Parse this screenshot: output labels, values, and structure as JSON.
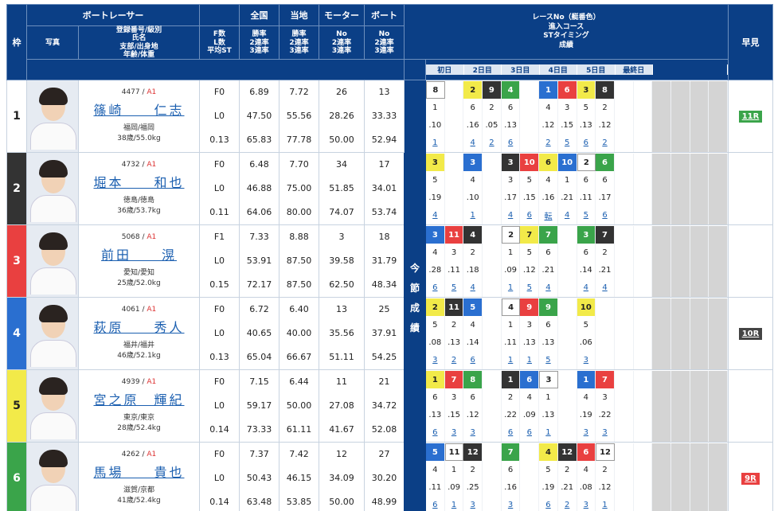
{
  "header": {
    "waku": "枠",
    "photo": "写真",
    "racer": "ボートレーサー",
    "racer_sub": "登録番号/級別\n氏名\n支部/出身地\n年齢/体重",
    "fl": "F数\nL数\n平均ST",
    "zenkoku": "全国",
    "touchi": "当地",
    "motor": "モーター",
    "boat": "ボート",
    "rate3": "勝率\n2連率\n3連率",
    "no3": "No\n2連率\n3連率",
    "race_title": "レースNo（艇番色）\n進入コース\nSTタイミング\n成績",
    "hayami": "早見",
    "side": [
      "今",
      "節",
      "成",
      "績"
    ],
    "days": [
      "初日",
      "2日目",
      "3日目",
      "4日目",
      "5日目",
      "最終日"
    ]
  },
  "racers": [
    {
      "waku": "1",
      "id": "4477",
      "cls": "A1",
      "name": "篠崎　　仁志",
      "branch": "福岡/福岡",
      "age": "38歳/55.0kg",
      "f": "F0",
      "l": "L0",
      "st": "0.13",
      "n": [
        "6.89",
        "47.50",
        "65.83"
      ],
      "t": [
        "7.72",
        "55.56",
        "77.78"
      ],
      "m": [
        "26",
        "28.26",
        "50.00"
      ],
      "b": [
        "13",
        "33.33",
        "52.94"
      ],
      "hayami": "11R",
      "hcolor": "bg-green",
      "r": [
        [
          "8b1",
          "",
          "2b5",
          "9b2",
          "4b6",
          "",
          "1b4",
          "6b3",
          "3b5",
          "8b2",
          "",
          "",
          "",
          "",
          "",
          ""
        ],
        [
          "1",
          "",
          "6",
          "2",
          "6",
          "",
          "4",
          "3",
          "5",
          "2",
          "",
          "",
          "",
          "",
          "",
          ""
        ],
        [
          ".10",
          "",
          ".16",
          ".05",
          ".13",
          "",
          ".12",
          ".15",
          ".13",
          ".12",
          "",
          "",
          "",
          "",
          "",
          ""
        ],
        [
          "1L",
          "",
          "4L",
          "2L",
          "6L",
          "",
          "2L",
          "5L",
          "6L",
          "2L",
          "",
          "",
          "",
          "",
          "",
          ""
        ]
      ]
    },
    {
      "waku": "2",
      "id": "4732",
      "cls": "A1",
      "name": "堀本　　和也",
      "branch": "徳島/徳島",
      "age": "36歳/53.7kg",
      "f": "F0",
      "l": "L0",
      "st": "0.11",
      "n": [
        "6.48",
        "46.88",
        "64.06"
      ],
      "t": [
        "7.70",
        "75.00",
        "80.00"
      ],
      "m": [
        "34",
        "51.85",
        "74.07"
      ],
      "b": [
        "17",
        "34.01",
        "53.74"
      ],
      "hayami": "",
      "hcolor": "",
      "r": [
        [
          "3b5",
          "",
          "3b4",
          "",
          "3b2",
          "10b3",
          "6b5",
          "10b4",
          "2b1",
          "6b6",
          "",
          "",
          "",
          "",
          "",
          ""
        ],
        [
          "5",
          "",
          "4",
          "",
          "3",
          "5",
          "4",
          "1",
          "6",
          "6",
          "",
          "",
          "",
          "",
          "",
          ""
        ],
        [
          ".19",
          "",
          ".10",
          "",
          ".17",
          ".15",
          ".16",
          ".21",
          ".11",
          ".17",
          "",
          "",
          "",
          "",
          "",
          ""
        ],
        [
          "4L",
          "",
          "1L",
          "",
          "4L",
          "6L",
          "転L",
          "4L",
          "5L",
          "6L",
          "",
          "",
          "",
          "",
          "",
          ""
        ]
      ]
    },
    {
      "waku": "3",
      "id": "5068",
      "cls": "A1",
      "name": "前田　　滉",
      "branch": "愛知/愛知",
      "age": "25歳/52.0kg",
      "f": "F1",
      "l": "L0",
      "st": "0.15",
      "n": [
        "7.33",
        "53.91",
        "72.17"
      ],
      "t": [
        "8.88",
        "87.50",
        "87.50"
      ],
      "m": [
        "3",
        "39.58",
        "62.50"
      ],
      "b": [
        "18",
        "31.79",
        "48.34"
      ],
      "hayami": "",
      "hcolor": "",
      "r": [
        [
          "3b4",
          "11b3",
          "4b2",
          "",
          "2b1",
          "7b5",
          "7b6",
          "",
          "3b6",
          "7b2",
          "",
          "",
          "",
          "",
          "",
          ""
        ],
        [
          "4",
          "3",
          "2",
          "",
          "1",
          "5",
          "6",
          "",
          "6",
          "2",
          "",
          "",
          "",
          "",
          "",
          ""
        ],
        [
          ".28",
          ".11",
          ".18",
          "",
          ".09",
          ".12",
          ".21",
          "",
          ".14",
          ".21",
          "",
          "",
          "",
          "",
          "",
          ""
        ],
        [
          "6L",
          "5L",
          "4L",
          "",
          "1L",
          "5L",
          "4L",
          "",
          "4L",
          "4L",
          "",
          "",
          "",
          "",
          "",
          ""
        ]
      ]
    },
    {
      "waku": "4",
      "id": "4061",
      "cls": "A1",
      "name": "萩原　　秀人",
      "branch": "福井/福井",
      "age": "46歳/52.1kg",
      "f": "F0",
      "l": "L0",
      "st": "0.13",
      "n": [
        "6.72",
        "40.65",
        "65.04"
      ],
      "t": [
        "6.40",
        "40.00",
        "66.67"
      ],
      "m": [
        "13",
        "35.56",
        "51.11"
      ],
      "b": [
        "25",
        "37.91",
        "54.25"
      ],
      "hayami": "10R",
      "hcolor": "bg-dark",
      "r": [
        [
          "2b5",
          "11b2",
          "5b4",
          "",
          "4b1",
          "9b3",
          "9b6",
          "",
          "10b5",
          "",
          "",
          "",
          "",
          "",
          "",
          ""
        ],
        [
          "5",
          "2",
          "4",
          "",
          "1",
          "3",
          "6",
          "",
          "5",
          "",
          "",
          "",
          "",
          "",
          "",
          ""
        ],
        [
          ".08",
          ".13",
          ".14",
          "",
          ".11",
          ".13",
          ".13",
          "",
          ".06",
          "",
          "",
          "",
          "",
          "",
          "",
          ""
        ],
        [
          "3L",
          "2L",
          "6L",
          "",
          "1L",
          "1L",
          "5L",
          "",
          "3L",
          "",
          "",
          "",
          "",
          "",
          "",
          ""
        ]
      ]
    },
    {
      "waku": "5",
      "id": "4939",
      "cls": "A1",
      "name": "宮之原　輝紀",
      "branch": "東京/東京",
      "age": "28歳/52.4kg",
      "f": "F0",
      "l": "L0",
      "st": "0.14",
      "n": [
        "7.15",
        "59.17",
        "73.33"
      ],
      "t": [
        "6.44",
        "50.00",
        "61.11"
      ],
      "m": [
        "11",
        "27.08",
        "41.67"
      ],
      "b": [
        "21",
        "34.72",
        "52.08"
      ],
      "hayami": "",
      "hcolor": "",
      "r": [
        [
          "1b5",
          "7b3",
          "8b6",
          "",
          "1b2",
          "6b4",
          "3b1",
          "",
          "1b4",
          "7b3",
          "",
          "",
          "",
          "",
          "",
          ""
        ],
        [
          "6",
          "3",
          "6",
          "",
          "2",
          "4",
          "1",
          "",
          "4",
          "3",
          "",
          "",
          "",
          "",
          "",
          ""
        ],
        [
          ".13",
          ".15",
          ".12",
          "",
          ".22",
          ".09",
          ".13",
          "",
          ".19",
          ".22",
          "",
          "",
          "",
          "",
          "",
          ""
        ],
        [
          "6L",
          "3L",
          "3L",
          "",
          "6L",
          "6L",
          "1L",
          "",
          "3L",
          "3L",
          "",
          "",
          "",
          "",
          "",
          ""
        ]
      ]
    },
    {
      "waku": "6",
      "id": "4262",
      "cls": "A1",
      "name": "馬場　　貴也",
      "branch": "滋賀/京都",
      "age": "41歳/52.4kg",
      "f": "F0",
      "l": "L0",
      "st": "0.14",
      "n": [
        "7.37",
        "50.43",
        "63.48"
      ],
      "t": [
        "7.42",
        "46.15",
        "53.85"
      ],
      "m": [
        "12",
        "34.09",
        "50.00"
      ],
      "b": [
        "27",
        "30.20",
        "48.99"
      ],
      "hayami": "9R",
      "hcolor": "bg-red",
      "r": [
        [
          "5b4",
          "11b1",
          "12b2",
          "",
          "7b6",
          "",
          "4b5",
          "12b2",
          "6b3",
          "12b1",
          "",
          "",
          "",
          "",
          "",
          ""
        ],
        [
          "4",
          "1",
          "2",
          "",
          "6",
          "",
          "5",
          "2",
          "4",
          "2",
          "",
          "",
          "",
          "",
          "",
          ""
        ],
        [
          ".11",
          ".09",
          ".25",
          "",
          ".16",
          "",
          ".19",
          ".21",
          ".08",
          ".12",
          "",
          "",
          "",
          "",
          "",
          ""
        ],
        [
          "6L",
          "1L",
          "3L",
          "",
          "3L",
          "",
          "6L",
          "2L",
          "3L",
          "1L",
          "",
          "",
          "",
          "",
          "",
          ""
        ]
      ]
    }
  ]
}
